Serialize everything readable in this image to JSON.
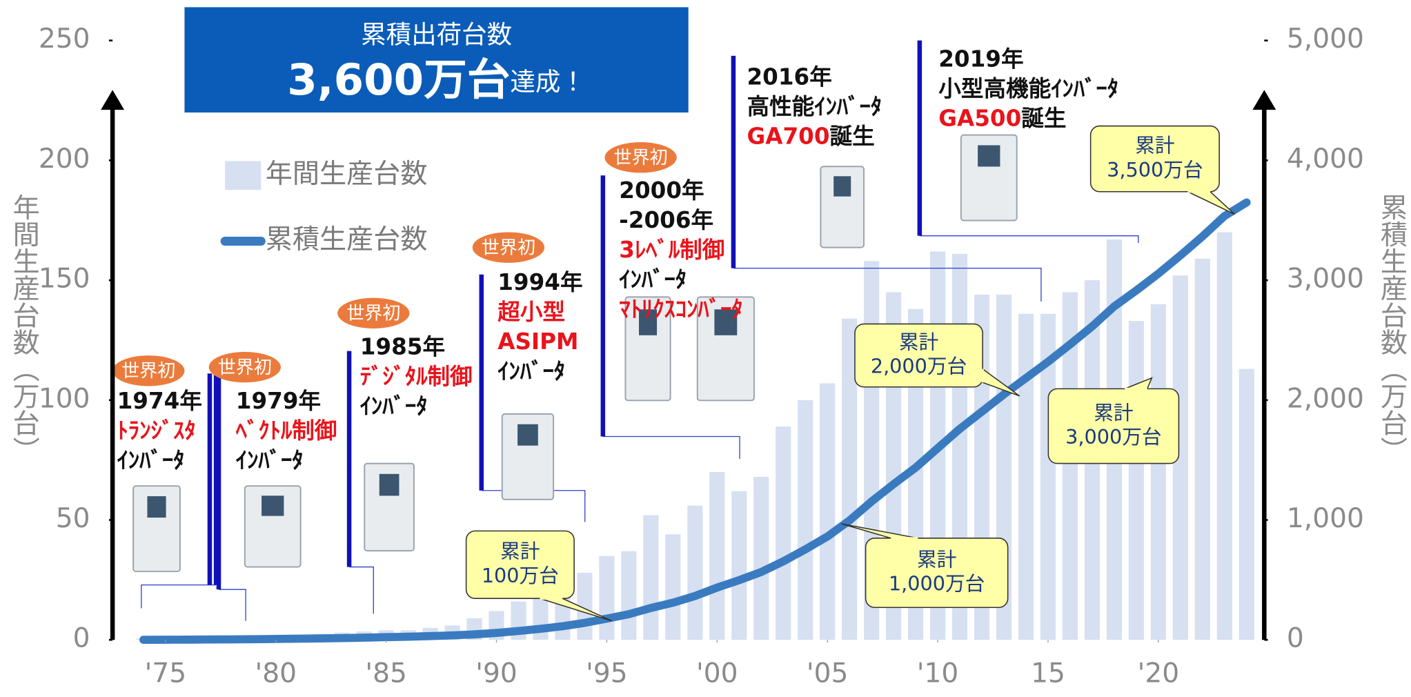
{
  "chart_data": {
    "type": "combo",
    "title_box": {
      "line1": "累積出荷台数",
      "main": "3,600万台",
      "suffix": "達成！"
    },
    "y_label": "年間生産台数（万台）",
    "y2_label": "累積生産台数（万台）",
    "x": [
      1974,
      1975,
      1976,
      1977,
      1978,
      1979,
      1980,
      1981,
      1982,
      1983,
      1984,
      1985,
      1986,
      1987,
      1988,
      1989,
      1990,
      1991,
      1992,
      1993,
      1994,
      1995,
      1996,
      1997,
      1998,
      1999,
      2000,
      2001,
      2002,
      2003,
      2004,
      2005,
      2006,
      2007,
      2008,
      2009,
      2010,
      2011,
      2012,
      2013,
      2014,
      2015,
      2016,
      2017,
      2018,
      2019,
      2020,
      2021,
      2022,
      2023,
      2024
    ],
    "xlim": [
      1972.6,
      2024.8
    ],
    "xticks": [
      {
        "value": 1975,
        "label": "'75"
      },
      {
        "value": 1980,
        "label": "'80"
      },
      {
        "value": 1985,
        "label": "'85"
      },
      {
        "value": 1990,
        "label": "'90"
      },
      {
        "value": 1995,
        "label": "'95"
      },
      {
        "value": 2000,
        "label": "'00"
      },
      {
        "value": 2005,
        "label": "'05"
      },
      {
        "value": 2010,
        "label": "'10"
      },
      {
        "value": 2015,
        "label": "15"
      },
      {
        "value": 2020,
        "label": "'20"
      }
    ],
    "ylim": [
      0,
      250
    ],
    "yticks": [
      0,
      50,
      100,
      150,
      200,
      250
    ],
    "y2lim": [
      0,
      5000
    ],
    "y2ticks": [
      0,
      {
        "value": 1000,
        "label": "1,000"
      },
      {
        "value": 2000,
        "label": "2,000"
      },
      {
        "value": 3000,
        "label": "3,000"
      },
      {
        "value": 4000,
        "label": "4,000"
      },
      {
        "value": 5000,
        "label": "5,000"
      }
    ],
    "series": [
      {
        "name": "年間生産台数",
        "type": "bar",
        "color": "#d6e0f1",
        "values": [
          0.5,
          0.5,
          1,
          1,
          1,
          1.5,
          2,
          2,
          2.5,
          3,
          3.5,
          4,
          4,
          5,
          6,
          9,
          12,
          16,
          18,
          22,
          28,
          35,
          37,
          52,
          44,
          56,
          70,
          62,
          68,
          89,
          100,
          107,
          134,
          158,
          145,
          138,
          162,
          161,
          144,
          144,
          136,
          136,
          145,
          150,
          167,
          133,
          140,
          152,
          159,
          170,
          113
        ]
      },
      {
        "name": "累積生産台数",
        "type": "line",
        "axis": "y2",
        "color": "#3a7bc0",
        "values": [
          0.5,
          1,
          2,
          3,
          4,
          5.5,
          7.5,
          9.5,
          12,
          15,
          18.5,
          22.5,
          26.5,
          31.5,
          37.5,
          46,
          58,
          74,
          92,
          114,
          142,
          177,
          214,
          266,
          310,
          366,
          436,
          498,
          566,
          655,
          755,
          862,
          996,
          1154,
          1299,
          1437,
          1599,
          1760,
          1904,
          2048,
          2184,
          2320,
          2465,
          2615,
          2782,
          2915,
          3055,
          3207,
          3366,
          3536,
          3649
        ]
      }
    ],
    "milestones": [
      {
        "badge": "世界初",
        "year": "1974年",
        "lines": [
          [
            {
              "text": "ﾄﾗﾝｼﾞｽﾀ",
              "color": "#e8141c"
            }
          ],
          [
            {
              "text": "ｲﾝﾊﾞｰﾀ",
              "color": "#111111"
            }
          ]
        ]
      },
      {
        "badge": "世界初",
        "year": "1979年",
        "lines": [
          [
            {
              "text": "ﾍﾞｸﾄﾙ制御",
              "color": "#e8141c"
            }
          ],
          [
            {
              "text": "ｲﾝﾊﾞｰﾀ",
              "color": "#111111"
            }
          ]
        ]
      },
      {
        "badge": "世界初",
        "year": "1985年",
        "lines": [
          [
            {
              "text": "ﾃﾞｼﾞﾀﾙ制御",
              "color": "#e8141c"
            }
          ],
          [
            {
              "text": "ｲﾝﾊﾞｰﾀ",
              "color": "#111111"
            }
          ]
        ]
      },
      {
        "badge": "世界初",
        "year": "1994年",
        "lines": [
          [
            {
              "text": "超小型",
              "color": "#e8141c"
            }
          ],
          [
            {
              "text": "ASIPM",
              "color": "#e8141c"
            }
          ],
          [
            {
              "text": "ｲﾝﾊﾞｰﾀ",
              "color": "#111111"
            }
          ]
        ]
      },
      {
        "badge": "世界初",
        "year": "2000年",
        "lines": [
          [
            {
              "text": "-2006年",
              "color": "#111111"
            }
          ],
          [
            {
              "text": "3ﾚﾍﾞﾙ制御",
              "color": "#e8141c"
            }
          ],
          [
            {
              "text": "ｲﾝﾊﾞｰﾀ",
              "color": "#111111"
            }
          ],
          [
            {
              "text": "ﾏﾄﾘｸｽｺﾝﾊﾞｰﾀ",
              "color": "#e8141c"
            }
          ]
        ]
      },
      {
        "year": "2016年",
        "lines": [
          [
            {
              "text": "高性能ｲﾝﾊﾞｰﾀ",
              "color": "#111111"
            }
          ],
          [
            {
              "text": "GA700",
              "color": "#e8141c"
            },
            {
              "text": "誕生",
              "color": "#111111"
            }
          ]
        ]
      },
      {
        "year": "2019年",
        "lines": [
          [
            {
              "text": "小型高機能ｲﾝﾊﾞｰﾀ",
              "color": "#111111"
            }
          ],
          [
            {
              "text": "GA500",
              "color": "#e8141c"
            },
            {
              "text": "誕生",
              "color": "#111111"
            }
          ]
        ]
      }
    ],
    "callouts": [
      {
        "lines": [
          "累計",
          "100万台"
        ]
      },
      {
        "lines": [
          "累計",
          "1,000万台"
        ]
      },
      {
        "lines": [
          "累計",
          "2,000万台"
        ]
      },
      {
        "lines": [
          "累計",
          "3,000万台"
        ]
      },
      {
        "lines": [
          "累計",
          "3,500万台"
        ]
      }
    ]
  }
}
